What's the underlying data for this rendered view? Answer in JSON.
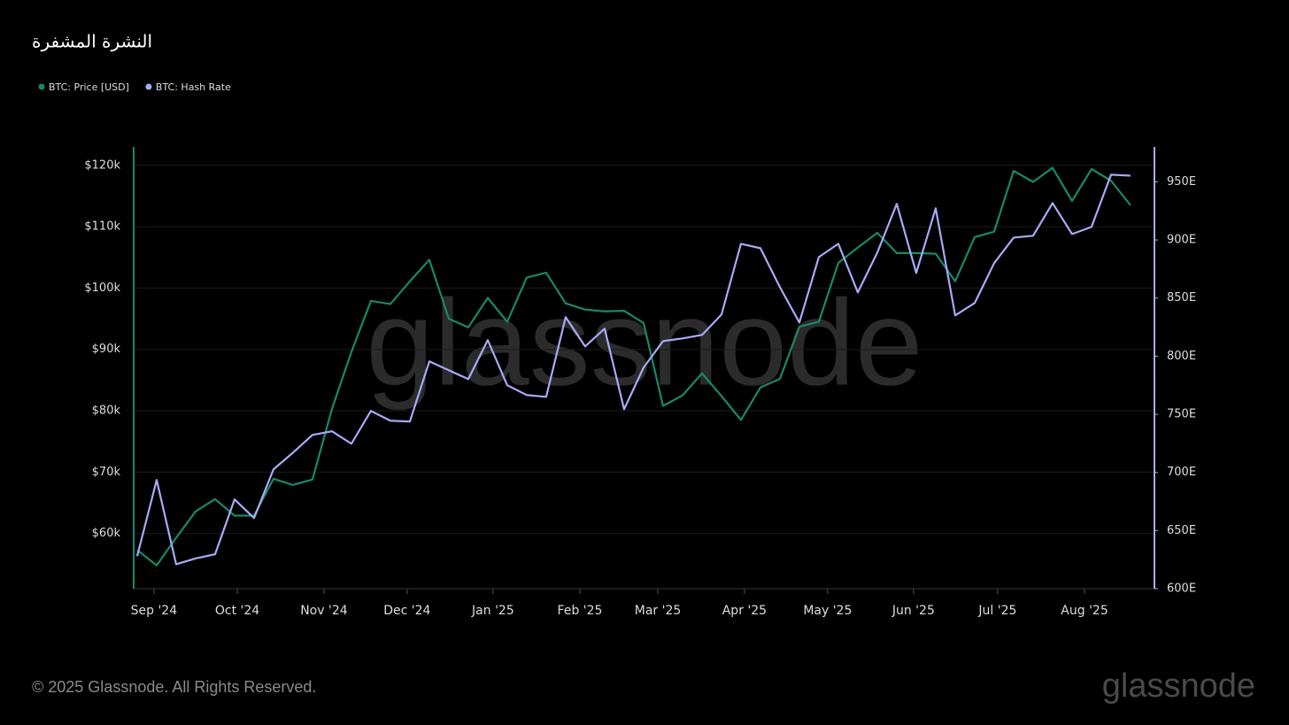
{
  "chart_data": {
    "type": "line",
    "title": "النشرة المشفرة",
    "copyright": "© 2025 Glassnode. All Rights Reserved.",
    "watermark": "glassnode",
    "x": [
      0,
      1,
      2,
      3,
      4,
      5,
      6,
      7,
      8,
      9,
      10,
      11,
      12,
      13,
      14,
      15,
      16,
      17,
      18,
      19,
      20,
      21,
      22,
      23,
      24,
      25,
      26,
      27,
      28,
      29,
      30,
      31,
      32,
      33,
      34,
      35,
      36,
      37,
      38,
      39,
      40,
      41,
      42,
      43,
      44,
      45,
      46,
      47,
      48,
      49,
      50,
      51
    ],
    "xlim": [
      -0.18,
      52.23
    ],
    "xticks": [
      {
        "value": 0.86,
        "label": "Sep '24"
      },
      {
        "value": 5.14,
        "label": "Oct '24"
      },
      {
        "value": 9.59,
        "label": "Nov '24"
      },
      {
        "value": 13.86,
        "label": "Dec '24"
      },
      {
        "value": 18.27,
        "label": "Jan '25"
      },
      {
        "value": 22.73,
        "label": "Feb '25"
      },
      {
        "value": 26.73,
        "label": "Mar '25"
      },
      {
        "value": 31.18,
        "label": "Apr '25"
      },
      {
        "value": 35.45,
        "label": "May '25"
      },
      {
        "value": 39.86,
        "label": "Jun '25"
      },
      {
        "value": 44.18,
        "label": "Jul '25"
      },
      {
        "value": 48.64,
        "label": "Aug '25"
      }
    ],
    "ylim": [
      51000,
      123000
    ],
    "yticks": [
      {
        "value": 60000,
        "label": "$60k"
      },
      {
        "value": 70000,
        "label": "$70k"
      },
      {
        "value": 80000,
        "label": "$80k"
      },
      {
        "value": 90000,
        "label": "$90k"
      },
      {
        "value": 100000,
        "label": "$100k"
      },
      {
        "value": 110000,
        "label": "$110k"
      },
      {
        "value": 120000,
        "label": "$120k"
      }
    ],
    "y2lim": [
      600,
      980
    ],
    "y2ticks": [
      {
        "value": 600,
        "label": "600E"
      },
      {
        "value": 650,
        "label": "650E"
      },
      {
        "value": 700,
        "label": "700E"
      },
      {
        "value": 750,
        "label": "750E"
      },
      {
        "value": 800,
        "label": "800E"
      },
      {
        "value": 850,
        "label": "850E"
      },
      {
        "value": 900,
        "label": "900E"
      },
      {
        "value": 950,
        "label": "950E"
      }
    ],
    "grid": true,
    "series": [
      {
        "name": "BTC: Price [USD]",
        "color": "#17896b",
        "axis": "y",
        "values": [
          57300,
          54800,
          59300,
          63600,
          65600,
          62900,
          62900,
          68900,
          67900,
          68800,
          80300,
          89600,
          97900,
          97400,
          101100,
          104600,
          95000,
          93600,
          98400,
          94500,
          101700,
          102500,
          97500,
          96500,
          96200,
          96300,
          94300,
          80800,
          82500,
          86100,
          82400,
          78500,
          83800,
          85200,
          93700,
          94500,
          104100,
          106600,
          109000,
          105700,
          105700,
          105600,
          101100,
          108300,
          109200,
          119100,
          117300,
          119600,
          114200,
          119400,
          117500,
          113500
        ]
      },
      {
        "name": "BTC: Hash Rate",
        "color": "#a9aaf7",
        "axis": "y2",
        "values": [
          628,
          693.5,
          621,
          626,
          629.6,
          676.8,
          660.8,
          702.7,
          717,
          732.3,
          735.4,
          724.7,
          752.9,
          744.5,
          743.8,
          795.5,
          787.9,
          780.3,
          813.8,
          775,
          766.6,
          765,
          833.6,
          808.4,
          823.7,
          754.4,
          790.2,
          813,
          815.3,
          818.3,
          835.8,
          896.7,
          892.9,
          859.4,
          829,
          885.3,
          896.7,
          854.9,
          889.1,
          931,
          871.6,
          927.2,
          835.1,
          845.7,
          880,
          902,
          903.6,
          931.7,
          905.1,
          911.2,
          956.1,
          955.3
        ]
      }
    ]
  }
}
